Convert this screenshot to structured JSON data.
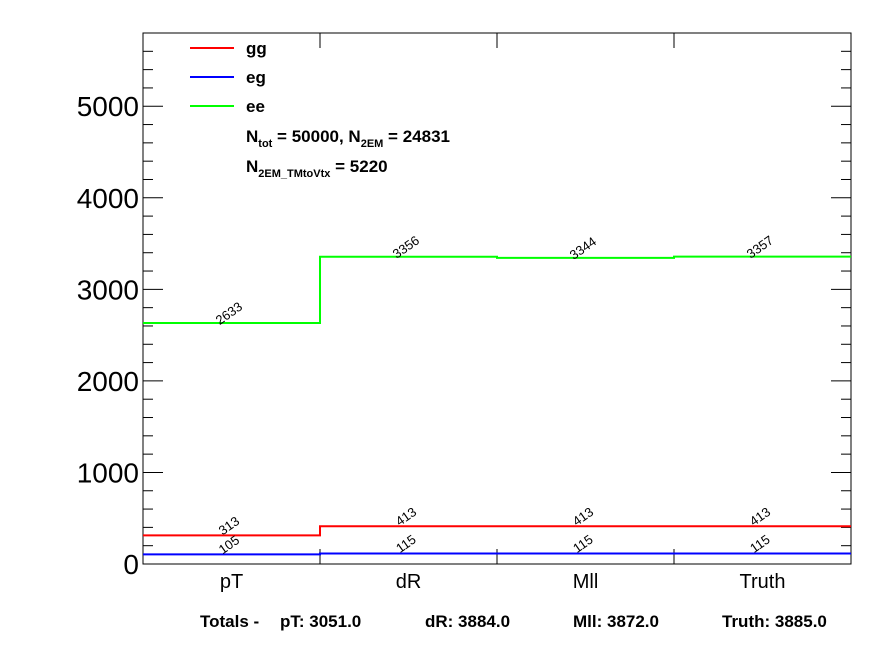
{
  "chart_data": {
    "type": "line",
    "style": "step-histogram",
    "categories": [
      "pT",
      "dR",
      "Mll",
      "Truth"
    ],
    "ylim": [
      0,
      5800
    ],
    "yticks": [
      0,
      1000,
      2000,
      3000,
      4000,
      5000
    ],
    "ytick_labels": [
      "0",
      "1000",
      "2000",
      "3000",
      "4000",
      "5000"
    ],
    "series": [
      {
        "name": "gg",
        "color": "#ff0000",
        "values": [
          313,
          413,
          413,
          413
        ],
        "labels": [
          "313",
          "413",
          "413",
          "413"
        ]
      },
      {
        "name": "eg",
        "color": "#0000ff",
        "values": [
          105,
          115,
          115,
          115
        ],
        "labels": [
          "105",
          "115",
          "115",
          "115"
        ]
      },
      {
        "name": "ee",
        "color": "#00ff00",
        "values": [
          2633,
          3356,
          3344,
          3357
        ],
        "labels": [
          "2633",
          "3356",
          "3344",
          "3357"
        ]
      }
    ],
    "legend_position": "top-left",
    "annotations": {
      "ntot_line": {
        "N": "N",
        "sub1": "tot",
        "mid": " = 50000, N",
        "sub2": "2EM",
        "end": " = 24831"
      },
      "tm_line": {
        "N": "N",
        "sub": "2EM_TMtoVtx",
        "end": "  = 5220"
      }
    },
    "grid": false
  },
  "totals": {
    "prefix": "Totals -",
    "pT": "pT: 3051.0",
    "dR": "dR: 3884.0",
    "Mll": "Mll: 3872.0",
    "Truth": "Truth: 3885.0"
  }
}
